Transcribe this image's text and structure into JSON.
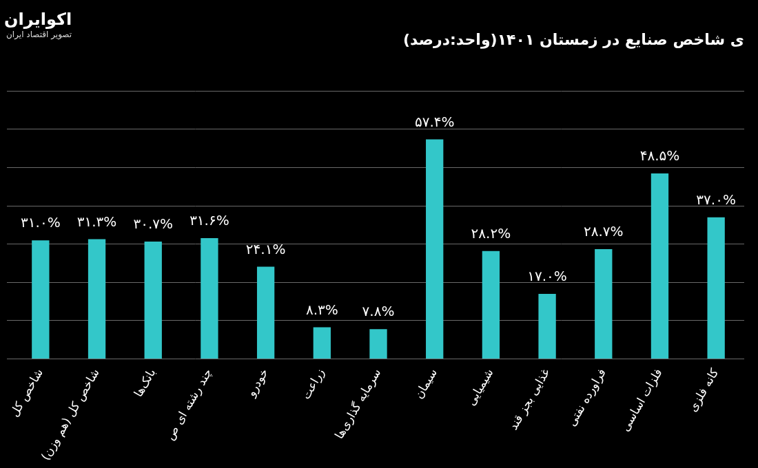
{
  "chart_data": {
    "type": "bar",
    "title": "ی شاخص صنایع در زمستان ۱۴۰۱(واحد:درصد)",
    "annotations": [
      "اکوایران",
      "تصویر اقتصاد ایران"
    ],
    "categories": [
      "شاخص کل",
      "شاخص کل (هم وزن)",
      "بانک‌ها",
      "چند رشته ای ص",
      "خودرو",
      "زراعت",
      "سرمایه گذاری‌ها",
      "سیمان",
      "شیمیایی",
      "غذایی بجز قند",
      "فراورده نفتی",
      "فلزات اساسی",
      "کانه فلزی"
    ],
    "values": [
      31.0,
      31.3,
      30.7,
      31.6,
      24.1,
      8.3,
      7.8,
      57.4,
      28.2,
      17.0,
      28.7,
      48.5,
      37.0
    ],
    "value_labels": [
      "۳۱.۰%",
      "۳۱.۳%",
      "۳۰.۷%",
      "۳۱.۶%",
      "۲۴.۱%",
      "۸.۳%",
      "۷.۸%",
      "۵۷.۴%",
      "۲۸.۲%",
      "۱۷.۰%",
      "۲۸.۷%",
      "۴۸.۵%",
      "۳۷.۰%"
    ],
    "color": "#33c7c9",
    "ylim": [
      0,
      70
    ],
    "yticks": [
      0,
      10,
      20,
      30,
      40,
      50,
      60,
      70
    ],
    "grid": true,
    "data_labels": true,
    "tick_labels": "x"
  }
}
